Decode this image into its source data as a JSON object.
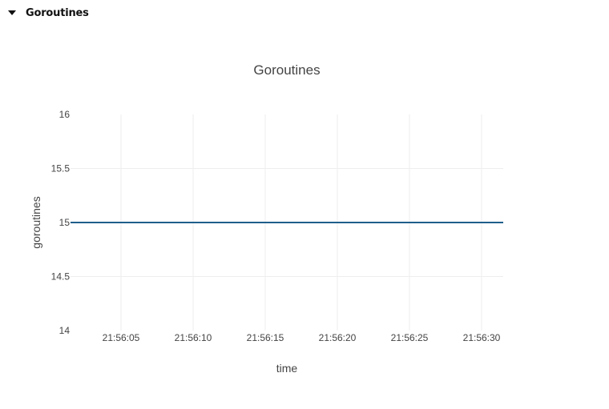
{
  "section": {
    "title": "Goroutines"
  },
  "colors": {
    "line": "#1f5f8b",
    "grid": "#eeeeee",
    "text": "#444444"
  },
  "chart_data": {
    "type": "line",
    "title": "Goroutines",
    "xlabel": "time",
    "ylabel": "goroutines",
    "x_ticks": [
      "21:56:05",
      "21:56:10",
      "21:56:15",
      "21:56:20",
      "21:56:25",
      "21:56:30"
    ],
    "x_tick_seconds": [
      5,
      10,
      15,
      20,
      25,
      30
    ],
    "xlim_seconds": [
      1.5,
      31.5
    ],
    "y_ticks": [
      "16",
      "15.5",
      "15",
      "14.5",
      "14"
    ],
    "y_tick_values": [
      16,
      15.5,
      15,
      14.5,
      14
    ],
    "ylim": [
      14,
      16
    ],
    "grid": true,
    "series": [
      {
        "name": "goroutines",
        "x_seconds": [
          1.5,
          31.5
        ],
        "values": [
          15,
          15
        ]
      }
    ]
  }
}
